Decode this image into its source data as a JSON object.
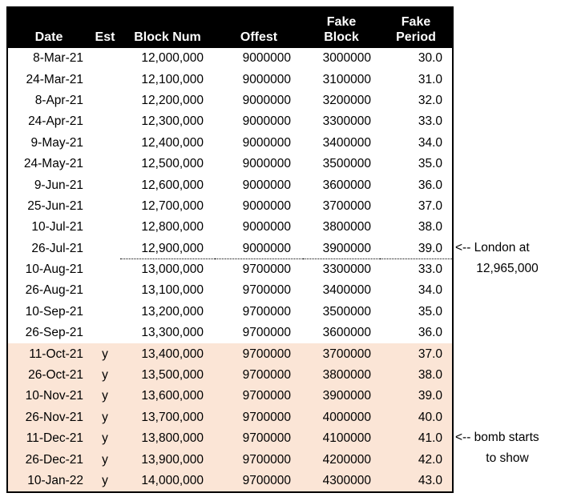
{
  "colors": {
    "header_bg": "#000000",
    "header_text": "#FFFFFF",
    "row_bg": "#FFFFFF",
    "highlight_bg": "#FBE5D6",
    "border": "#000000"
  },
  "table": {
    "column_keys": [
      "date",
      "est",
      "block-num",
      "offest",
      "fake-block",
      "fake-period"
    ],
    "columns": [
      {
        "line1": "",
        "line2": "Date"
      },
      {
        "line1": "",
        "line2": "Est"
      },
      {
        "line1": "",
        "line2": "Block Num"
      },
      {
        "line1": "",
        "line2": "Offest"
      },
      {
        "line1": "Fake",
        "line2": "Block"
      },
      {
        "line1": "Fake",
        "line2": "Period"
      }
    ],
    "rows": [
      {
        "cells": [
          "8-Mar-21",
          "",
          "12,000,000",
          "9000000",
          "3000000",
          "30.0"
        ],
        "highlight": false,
        "dotted": false
      },
      {
        "cells": [
          "24-Mar-21",
          "",
          "12,100,000",
          "9000000",
          "3100000",
          "31.0"
        ],
        "highlight": false,
        "dotted": false
      },
      {
        "cells": [
          "8-Apr-21",
          "",
          "12,200,000",
          "9000000",
          "3200000",
          "32.0"
        ],
        "highlight": false,
        "dotted": false
      },
      {
        "cells": [
          "24-Apr-21",
          "",
          "12,300,000",
          "9000000",
          "3300000",
          "33.0"
        ],
        "highlight": false,
        "dotted": false
      },
      {
        "cells": [
          "9-May-21",
          "",
          "12,400,000",
          "9000000",
          "3400000",
          "34.0"
        ],
        "highlight": false,
        "dotted": false
      },
      {
        "cells": [
          "24-May-21",
          "",
          "12,500,000",
          "9000000",
          "3500000",
          "35.0"
        ],
        "highlight": false,
        "dotted": false
      },
      {
        "cells": [
          "9-Jun-21",
          "",
          "12,600,000",
          "9000000",
          "3600000",
          "36.0"
        ],
        "highlight": false,
        "dotted": false
      },
      {
        "cells": [
          "25-Jun-21",
          "",
          "12,700,000",
          "9000000",
          "3700000",
          "37.0"
        ],
        "highlight": false,
        "dotted": false
      },
      {
        "cells": [
          "10-Jul-21",
          "",
          "12,800,000",
          "9000000",
          "3800000",
          "38.0"
        ],
        "highlight": false,
        "dotted": false
      },
      {
        "cells": [
          "26-Jul-21",
          "",
          "12,900,000",
          "9000000",
          "3900000",
          "39.0"
        ],
        "highlight": false,
        "dotted": true
      },
      {
        "cells": [
          "10-Aug-21",
          "",
          "13,000,000",
          "9700000",
          "3300000",
          "33.0"
        ],
        "highlight": false,
        "dotted": false
      },
      {
        "cells": [
          "26-Aug-21",
          "",
          "13,100,000",
          "9700000",
          "3400000",
          "34.0"
        ],
        "highlight": false,
        "dotted": false
      },
      {
        "cells": [
          "10-Sep-21",
          "",
          "13,200,000",
          "9700000",
          "3500000",
          "35.0"
        ],
        "highlight": false,
        "dotted": false
      },
      {
        "cells": [
          "26-Sep-21",
          "",
          "13,300,000",
          "9700000",
          "3600000",
          "36.0"
        ],
        "highlight": false,
        "dotted": false
      },
      {
        "cells": [
          "11-Oct-21",
          "y",
          "13,400,000",
          "9700000",
          "3700000",
          "37.0"
        ],
        "highlight": true,
        "dotted": false
      },
      {
        "cells": [
          "26-Oct-21",
          "y",
          "13,500,000",
          "9700000",
          "3800000",
          "38.0"
        ],
        "highlight": true,
        "dotted": false
      },
      {
        "cells": [
          "10-Nov-21",
          "y",
          "13,600,000",
          "9700000",
          "3900000",
          "39.0"
        ],
        "highlight": true,
        "dotted": false
      },
      {
        "cells": [
          "26-Nov-21",
          "y",
          "13,700,000",
          "9700000",
          "4000000",
          "40.0"
        ],
        "highlight": true,
        "dotted": false
      },
      {
        "cells": [
          "11-Dec-21",
          "y",
          "13,800,000",
          "9700000",
          "4100000",
          "41.0"
        ],
        "highlight": true,
        "dotted": false
      },
      {
        "cells": [
          "26-Dec-21",
          "y",
          "13,900,000",
          "9700000",
          "4200000",
          "42.0"
        ],
        "highlight": true,
        "dotted": false
      },
      {
        "cells": [
          "10-Jan-22",
          "y",
          "14,000,000",
          "9700000",
          "4300000",
          "43.0"
        ],
        "highlight": true,
        "dotted": false
      }
    ]
  },
  "annotations": [
    {
      "line1": "<-- London at",
      "line2": "12,965,000"
    },
    {
      "line1": "<-- bomb starts",
      "line2": "to show"
    }
  ]
}
